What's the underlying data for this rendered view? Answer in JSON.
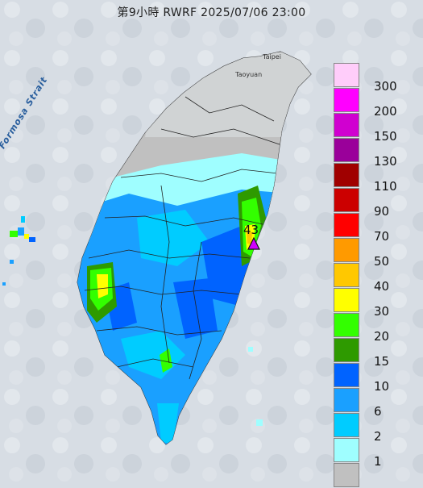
{
  "header": {
    "title": "第9小時 RWRF 2025/07/06 23:00"
  },
  "labels": {
    "strait": "Formosa Strait",
    "taipei": "Taipei",
    "taoyuan": "Taoyuan"
  },
  "peak": {
    "value": "43"
  },
  "legend": {
    "title": "",
    "entries": [
      {
        "label": "300",
        "color": "#ffcdfa"
      },
      {
        "label": "200",
        "color": "#ff00ff"
      },
      {
        "label": "150",
        "color": "#d000d0"
      },
      {
        "label": "130",
        "color": "#9a009a"
      },
      {
        "label": "110",
        "color": "#a00000"
      },
      {
        "label": "90",
        "color": "#cc0000"
      },
      {
        "label": "70",
        "color": "#ff0000"
      },
      {
        "label": "50",
        "color": "#ff9a00"
      },
      {
        "label": "40",
        "color": "#ffc800"
      },
      {
        "label": "30",
        "color": "#ffff00"
      },
      {
        "label": "20",
        "color": "#33ff00"
      },
      {
        "label": "15",
        "color": "#2e9a00"
      },
      {
        "label": "10",
        "color": "#0063ff"
      },
      {
        "label": "6",
        "color": "#1aa0ff"
      },
      {
        "label": "2",
        "color": "#00ccff"
      },
      {
        "label": "1",
        "color": "#9ffeff"
      },
      {
        "label": "",
        "color": "#c0c0c0"
      }
    ]
  },
  "colors": {
    "sea": "#d7dde4",
    "land_dry": "#d0d3d4",
    "no_rain": "#c0c0c0",
    "marker": "#d000ff"
  }
}
